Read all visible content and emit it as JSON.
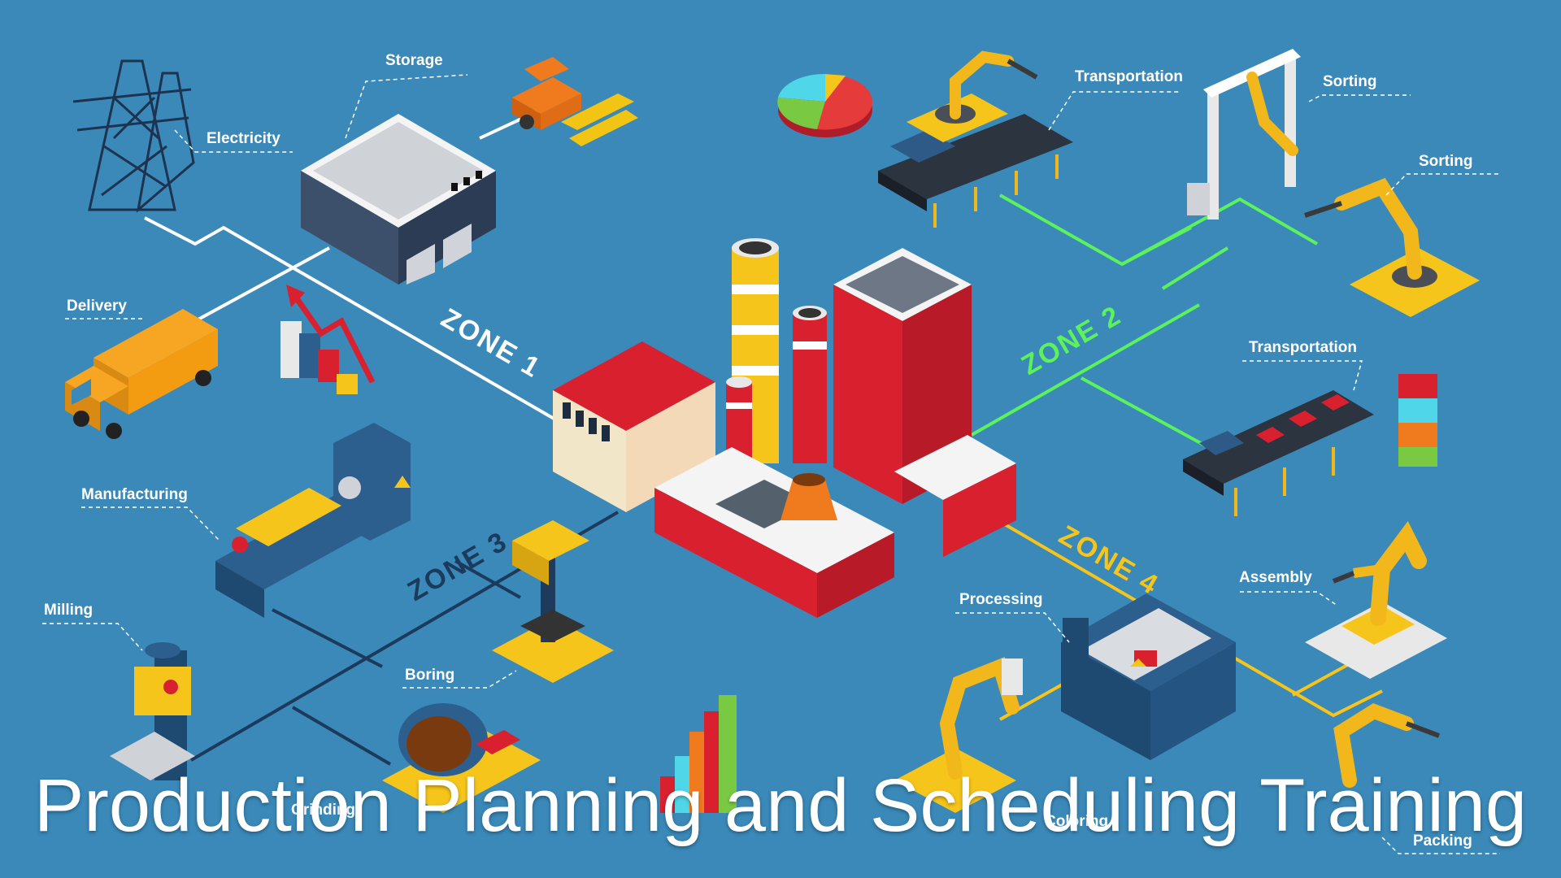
{
  "title": "Production Planning and Scheduling Training",
  "zones": {
    "zone1": "ZONE 1",
    "zone2": "ZONE 2",
    "zone3": "ZONE 3",
    "zone4": "ZONE 4"
  },
  "labels": {
    "storage": "Storage",
    "electricity": "Electricity",
    "delivery": "Delivery",
    "manufacturing": "Manufacturing",
    "milling": "Milling",
    "boring": "Boring",
    "grinding": "Grinding",
    "transportation_top": "Transportation",
    "sorting_1": "Sorting",
    "sorting_2": "Sorting",
    "transportation_right": "Transportation",
    "assembly": "Assembly",
    "processing": "Processing",
    "coloring": "Coloring",
    "packing": "Packing"
  },
  "colors": {
    "background": "#3a89b9",
    "zone1_line": "#ffffff",
    "zone2_line": "#5cf25c",
    "zone3_line": "#1b3a5c",
    "zone4_line": "#f6c51b"
  }
}
